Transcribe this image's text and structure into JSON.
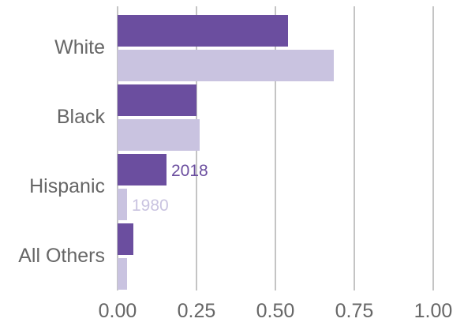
{
  "chart_data": {
    "type": "bar",
    "orientation": "horizontal",
    "categories": [
      "White",
      "Black",
      "Hispanic",
      "All Others"
    ],
    "series": [
      {
        "name": "2018",
        "values": [
          0.54,
          0.25,
          0.155,
          0.05
        ],
        "color": "#6b4e9f"
      },
      {
        "name": "1980",
        "values": [
          0.685,
          0.26,
          0.03,
          0.03
        ],
        "color": "#c9c3e0"
      }
    ],
    "xlim": [
      0,
      1
    ],
    "xticks": [
      0,
      0.25,
      0.5,
      0.75,
      1
    ],
    "xtick_labels": [
      "0.00",
      "0.25",
      "0.50",
      "0.75",
      "1.00"
    ],
    "grid": true,
    "legend": "inline labels beside Hispanic bars",
    "title": "",
    "xlabel": "",
    "ylabel": ""
  }
}
